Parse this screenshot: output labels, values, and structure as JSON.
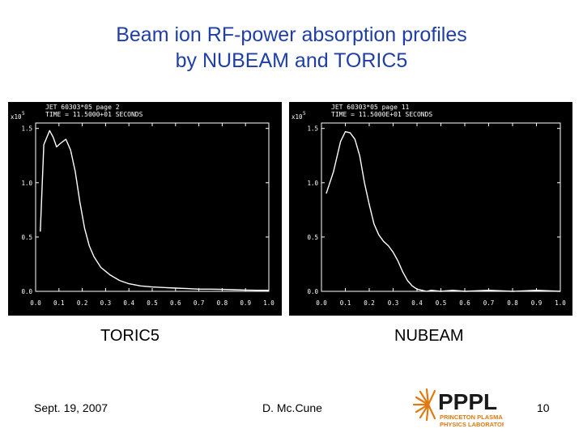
{
  "slide": {
    "title_line1": "Beam ion RF-power absorption profiles",
    "title_line2": "by NUBEAM and TORIC5",
    "caption_left": "TORIC5",
    "caption_right": "NUBEAM",
    "footer_date": "Sept. 19, 2007",
    "footer_author": "D. Mc.Cune",
    "page_number": "10",
    "logo_text": "PPPL",
    "logo_sub1": "PRINCETON PLASMA",
    "logo_sub2": "PHYSICS LABORATORY"
  },
  "colors": {
    "title": "#1f3fa6",
    "plot_background": "#000000",
    "plot_foreground": "#ffffff",
    "logo_text": "#1a1a1a",
    "logo_sub": "#e07a10"
  },
  "chart_data": [
    {
      "type": "line",
      "name": "toric5",
      "header_line1": "JET 60303*05 page 2",
      "header_line2": "TIME = 11.5000+01 SECONDS",
      "exponent": "x10",
      "exponent_power": "5",
      "xlim": [
        0.0,
        1.0
      ],
      "ylim": [
        0.0,
        1.55
      ],
      "x_ticks": [
        0.0,
        0.1,
        0.2,
        0.3,
        0.4,
        0.5,
        0.6,
        0.7,
        0.8,
        0.9,
        1.0
      ],
      "x_tick_labels": [
        "0.0",
        "0.1",
        "0.2",
        "0.3",
        "0.4",
        "0.5",
        "0.6",
        "0.7",
        "0.8",
        "0.9",
        "1.0"
      ],
      "y_ticks": [
        0.0,
        0.5,
        1.0,
        1.5
      ],
      "y_tick_labels": [
        "0.0",
        "0.5",
        "1.0",
        "1.5"
      ],
      "x": [
        0.02,
        0.035,
        0.06,
        0.075,
        0.09,
        0.105,
        0.13,
        0.15,
        0.17,
        0.19,
        0.21,
        0.23,
        0.25,
        0.28,
        0.32,
        0.36,
        0.4,
        0.45,
        0.5,
        0.55,
        0.6,
        0.65,
        0.7,
        0.75,
        0.8,
        0.85,
        0.9,
        0.95,
        1.0
      ],
      "y": [
        0.55,
        1.35,
        1.48,
        1.42,
        1.33,
        1.36,
        1.4,
        1.3,
        1.1,
        0.82,
        0.58,
        0.42,
        0.32,
        0.22,
        0.15,
        0.1,
        0.07,
        0.05,
        0.04,
        0.035,
        0.03,
        0.025,
        0.02,
        0.02,
        0.018,
        0.015,
        0.012,
        0.01,
        0.01
      ]
    },
    {
      "type": "line",
      "name": "nubeam",
      "header_line1": "JET 60303*05 page 11",
      "header_line2": "TIME = 11.5000E+01 SECONDS",
      "exponent": "x10",
      "exponent_power": "5",
      "xlim": [
        0.0,
        1.0
      ],
      "ylim": [
        0.0,
        1.55
      ],
      "x_ticks": [
        0.0,
        0.1,
        0.2,
        0.3,
        0.4,
        0.5,
        0.6,
        0.7,
        0.8,
        0.9,
        1.0
      ],
      "x_tick_labels": [
        "0.0",
        "0.1",
        "0.2",
        "0.3",
        "0.4",
        "0.5",
        "0.6",
        "0.7",
        "0.8",
        "0.9",
        "1.0"
      ],
      "y_ticks": [
        0.0,
        0.5,
        1.0,
        1.5
      ],
      "y_tick_labels": [
        "0.0",
        "0.5",
        "1.0",
        "1.5"
      ],
      "x": [
        0.02,
        0.05,
        0.08,
        0.1,
        0.12,
        0.14,
        0.16,
        0.18,
        0.2,
        0.22,
        0.24,
        0.26,
        0.28,
        0.3,
        0.32,
        0.34,
        0.36,
        0.38,
        0.4,
        0.42,
        0.44,
        0.46,
        0.5,
        0.55,
        0.6,
        0.7,
        0.8,
        0.9,
        1.0
      ],
      "y": [
        0.9,
        1.1,
        1.38,
        1.47,
        1.46,
        1.4,
        1.25,
        1.0,
        0.8,
        0.62,
        0.52,
        0.46,
        0.42,
        0.36,
        0.28,
        0.18,
        0.1,
        0.05,
        0.02,
        0.01,
        0.0,
        0.01,
        0.0,
        0.01,
        0.0,
        0.01,
        0.0,
        0.01,
        0.0
      ]
    }
  ]
}
